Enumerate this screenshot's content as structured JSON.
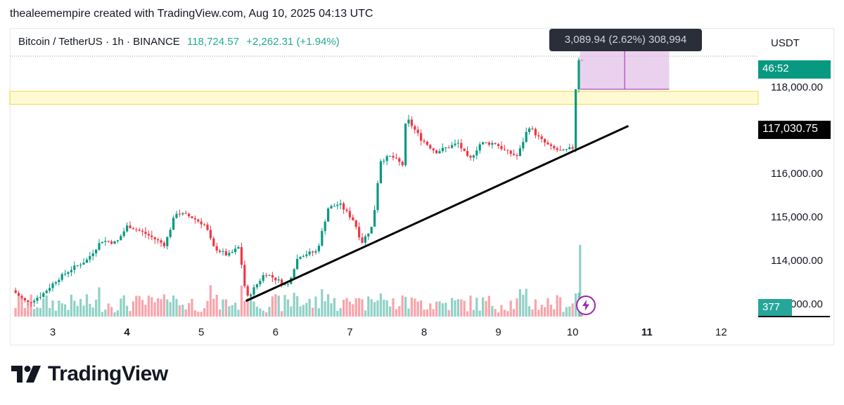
{
  "header": {
    "credit": "thealeemempire created with TradingView.com, Aug 10, 2025 04:13 UTC"
  },
  "legend": {
    "symbol": "Bitcoin / TetherUS · 1h · BINANCE",
    "last": "118,724.57",
    "change": "+2,262.31 (+1.94%)",
    "up_color": "#22ab94"
  },
  "axis": {
    "currency": "USDT",
    "price_labels": [
      "118,000.00",
      "116,000.00",
      "115,000.00",
      "114,000.00",
      "000.00"
    ]
  },
  "badges": {
    "countdown": "46:52",
    "current_price": "117,030.75",
    "volume": "377"
  },
  "measure_tooltip": "3,089.94 (2.62%) 308,994",
  "brand": {
    "name": "TradingView",
    "logo": "tradingview-logo-icon"
  },
  "icons": {
    "flash": "lightning-icon"
  },
  "chart_data": {
    "type": "candlestick",
    "symbol": "BTCUSDT",
    "timeframe": "1h",
    "x_tick_labels": [
      "3",
      "4",
      "5",
      "6",
      "7",
      "8",
      "9",
      "10",
      "11",
      "12"
    ],
    "x_bold_ticks": [
      "4",
      "11"
    ],
    "y_ticks": [
      114000,
      115000,
      116000,
      118000
    ],
    "ylim": [
      113050,
      119300
    ],
    "resistance_zone": [
      117600,
      117900
    ],
    "trendline": [
      {
        "day": 5.6,
        "price": 113050
      },
      {
        "day": 10.75,
        "price": 117100
      }
    ],
    "measure_box": {
      "from_day": 10.1,
      "to_day": 11.3,
      "from_price": 117950,
      "to_price": 119300
    },
    "up_color": "#089981",
    "down_color": "#f23645",
    "path_points": [
      {
        "day": 2.5,
        "price": 113300
      },
      {
        "day": 2.7,
        "price": 113000
      },
      {
        "day": 2.9,
        "price": 113200
      },
      {
        "day": 3.1,
        "price": 113550
      },
      {
        "day": 3.3,
        "price": 113800
      },
      {
        "day": 3.5,
        "price": 114000
      },
      {
        "day": 3.7,
        "price": 114450
      },
      {
        "day": 3.9,
        "price": 114400
      },
      {
        "day": 4.05,
        "price": 114800
      },
      {
        "day": 4.3,
        "price": 114600
      },
      {
        "day": 4.55,
        "price": 114350
      },
      {
        "day": 4.7,
        "price": 115100
      },
      {
        "day": 4.9,
        "price": 115000
      },
      {
        "day": 5.1,
        "price": 114800
      },
      {
        "day": 5.2,
        "price": 114300
      },
      {
        "day": 5.4,
        "price": 114100
      },
      {
        "day": 5.55,
        "price": 114300
      },
      {
        "day": 5.65,
        "price": 113100
      },
      {
        "day": 5.9,
        "price": 113700
      },
      {
        "day": 6.2,
        "price": 113400
      },
      {
        "day": 6.35,
        "price": 114100
      },
      {
        "day": 6.6,
        "price": 114200
      },
      {
        "day": 6.75,
        "price": 115200
      },
      {
        "day": 6.9,
        "price": 115300
      },
      {
        "day": 7.1,
        "price": 114900
      },
      {
        "day": 7.2,
        "price": 114400
      },
      {
        "day": 7.35,
        "price": 114800
      },
      {
        "day": 7.45,
        "price": 116300
      },
      {
        "day": 7.6,
        "price": 116400
      },
      {
        "day": 7.75,
        "price": 116200
      },
      {
        "day": 7.8,
        "price": 117300
      },
      {
        "day": 8.0,
        "price": 116800
      },
      {
        "day": 8.2,
        "price": 116500
      },
      {
        "day": 8.5,
        "price": 116700
      },
      {
        "day": 8.65,
        "price": 116300
      },
      {
        "day": 8.8,
        "price": 116700
      },
      {
        "day": 9.0,
        "price": 116700
      },
      {
        "day": 9.15,
        "price": 116500
      },
      {
        "day": 9.3,
        "price": 116400
      },
      {
        "day": 9.45,
        "price": 117100
      },
      {
        "day": 9.6,
        "price": 116800
      },
      {
        "day": 9.75,
        "price": 116600
      },
      {
        "day": 9.9,
        "price": 116500
      },
      {
        "day": 10.05,
        "price": 116600
      },
      {
        "day": 10.1,
        "price": 118650
      }
    ]
  }
}
